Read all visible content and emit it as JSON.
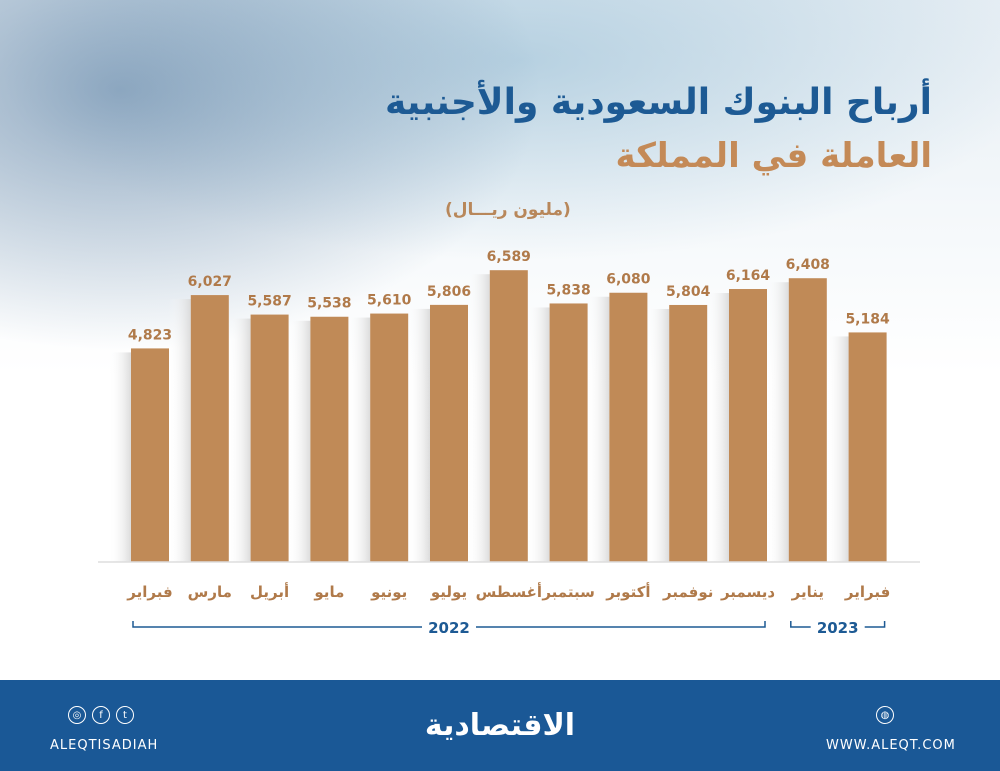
{
  "title_line1": "أرباح البنوك السعودية والأجنبية",
  "title_line2": "العاملة في المملكة",
  "unit": "(مليون ريـــال)",
  "chart_data": {
    "type": "bar",
    "categories": [
      "فبراير",
      "مارس",
      "أبريل",
      "مايو",
      "يونيو",
      "يوليو",
      "أغسطس",
      "سبتمبر",
      "أكتوبر",
      "نوفمبر",
      "ديسمبر",
      "يناير",
      "فبراير"
    ],
    "values": [
      4823,
      6027,
      5587,
      5538,
      5610,
      5806,
      6589,
      5838,
      6080,
      5804,
      6164,
      6408,
      5184
    ],
    "value_labels": [
      "4,823",
      "6,027",
      "5,587",
      "5,538",
      "5,610",
      "5,806",
      "6,589",
      "5,838",
      "6,080",
      "5,804",
      "6,164",
      "6,408",
      "5,184"
    ],
    "ylim": [
      0,
      7000
    ],
    "grid": false,
    "year_groups": [
      {
        "label": "2022",
        "from": 0,
        "to": 10
      },
      {
        "label": "2023",
        "from": 11,
        "to": 12
      }
    ],
    "colors": {
      "bar": "#c08a57",
      "label": "#b07a4a",
      "year": "#1d5a94"
    }
  },
  "footer": {
    "handle": "ALEQTISADIAH",
    "logo": "الاقتصادية",
    "website": "WWW.ALEQT.COM",
    "background": "#1a5896"
  }
}
